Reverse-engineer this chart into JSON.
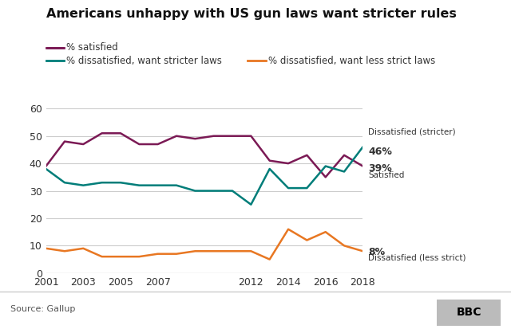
{
  "title": "Americans unhappy with US gun laws want stricter rules",
  "source": "Source: Gallup",
  "years": [
    2001,
    2002,
    2003,
    2004,
    2005,
    2006,
    2007,
    2008,
    2009,
    2010,
    2011,
    2012,
    2013,
    2014,
    2015,
    2016,
    2017,
    2018
  ],
  "satisfied": [
    39,
    48,
    47,
    51,
    51,
    47,
    47,
    50,
    49,
    50,
    50,
    50,
    41,
    40,
    43,
    35,
    43,
    39
  ],
  "dissatisfied_stricter": [
    38,
    33,
    32,
    33,
    33,
    32,
    32,
    32,
    30,
    30,
    30,
    25,
    38,
    31,
    31,
    39,
    37,
    46
  ],
  "dissatisfied_less_strict": [
    9,
    8,
    9,
    6,
    6,
    6,
    7,
    7,
    8,
    8,
    8,
    8,
    5,
    16,
    12,
    15,
    10,
    8
  ],
  "satisfied_color": "#7b1a55",
  "stricter_color": "#007d79",
  "less_strict_color": "#e87722",
  "ylim": [
    0,
    60
  ],
  "yticks": [
    0,
    10,
    20,
    30,
    40,
    50,
    60
  ],
  "xticks": [
    2001,
    2003,
    2005,
    2007,
    2012,
    2014,
    2016,
    2018
  ],
  "bg_color": "#ffffff",
  "grid_color": "#cccccc",
  "legend_satisfied": "% satisfied",
  "legend_stricter": "% dissatisfied, want stricter laws",
  "legend_less_strict": "% dissatisfied, want less strict laws",
  "bbc_text": "BBC"
}
